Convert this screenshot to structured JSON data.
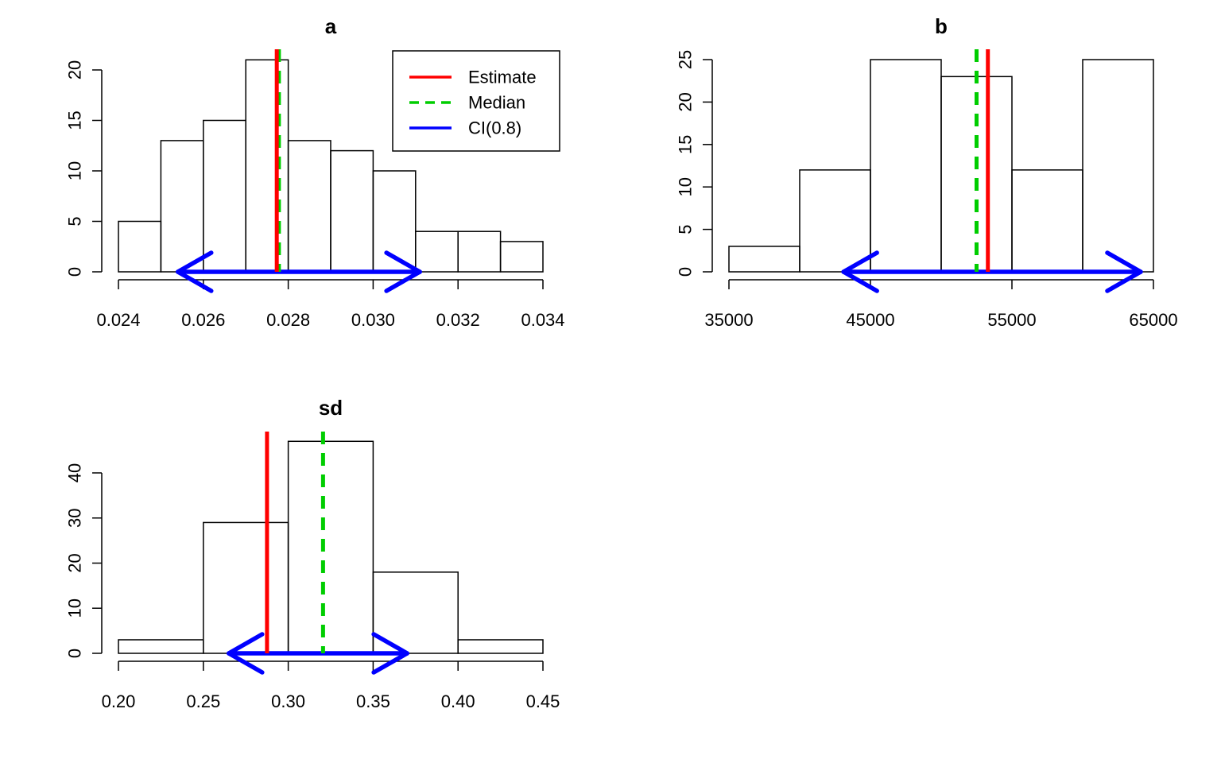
{
  "colors": {
    "bar_stroke": "#000000",
    "estimate": "#ff0000",
    "median": "#00cd00",
    "ci": "#0000ff"
  },
  "legend": {
    "placement": "top-right of panel a",
    "items": [
      {
        "label": "Estimate",
        "style": "solid",
        "color": "#ff0000"
      },
      {
        "label": "Median",
        "style": "dashed",
        "color": "#00cd00"
      },
      {
        "label": "CI(0.8)",
        "style": "solid",
        "color": "#0000ff"
      }
    ]
  },
  "chart_data": [
    {
      "type": "bar",
      "title": "a",
      "xlabel": "",
      "ylabel": "",
      "xlim": [
        0.024,
        0.034
      ],
      "ylim": [
        0,
        21
      ],
      "bin_edges": [
        0.024,
        0.025,
        0.026,
        0.027,
        0.028,
        0.029,
        0.03,
        0.031,
        0.032,
        0.033,
        0.034
      ],
      "counts": [
        5,
        13,
        15,
        21,
        13,
        12,
        10,
        4,
        4,
        3
      ],
      "x_ticks": [
        "0.024",
        "0.026",
        "0.028",
        "0.030",
        "0.032",
        "0.034"
      ],
      "x_tick_values": [
        0.024,
        0.026,
        0.028,
        0.03,
        0.032,
        0.034
      ],
      "y_ticks": [
        "0",
        "5",
        "10",
        "15",
        "20"
      ],
      "y_tick_values": [
        0,
        5,
        10,
        15,
        20
      ],
      "estimate": 0.02773,
      "median": 0.02778,
      "ci": [
        0.0254,
        0.0311
      ],
      "has_legend": true
    },
    {
      "type": "bar",
      "title": "b",
      "xlabel": "",
      "ylabel": "",
      "xlim": [
        35000,
        65000
      ],
      "ylim": [
        0,
        25
      ],
      "bin_edges": [
        35000,
        40000,
        45000,
        50000,
        55000,
        60000,
        65000
      ],
      "counts": [
        3,
        12,
        25,
        23,
        12,
        25
      ],
      "x_ticks": [
        "35000",
        "45000",
        "55000",
        "65000"
      ],
      "x_tick_values": [
        35000,
        45000,
        55000,
        65000
      ],
      "y_ticks": [
        "0",
        "5",
        "10",
        "15",
        "20",
        "25"
      ],
      "y_tick_values": [
        0,
        5,
        10,
        15,
        20,
        25
      ],
      "estimate": 53300,
      "median": 52500,
      "ci": [
        43100,
        64100
      ],
      "has_legend": false
    },
    {
      "type": "bar",
      "title": "sd",
      "xlabel": "",
      "ylabel": "",
      "xlim": [
        0.2,
        0.45
      ],
      "ylim": [
        0,
        47
      ],
      "bin_edges": [
        0.2,
        0.25,
        0.3,
        0.35,
        0.4,
        0.45
      ],
      "counts": [
        3,
        29,
        47,
        18,
        3
      ],
      "x_ticks": [
        "0.20",
        "0.25",
        "0.30",
        "0.35",
        "0.40",
        "0.45"
      ],
      "x_tick_values": [
        0.2,
        0.25,
        0.3,
        0.35,
        0.4,
        0.45
      ],
      "y_ticks": [
        "0",
        "10",
        "20",
        "30",
        "40"
      ],
      "y_tick_values": [
        0,
        10,
        20,
        30,
        40
      ],
      "estimate": 0.2875,
      "median": 0.3205,
      "ci": [
        0.265,
        0.37
      ],
      "has_legend": false
    }
  ]
}
